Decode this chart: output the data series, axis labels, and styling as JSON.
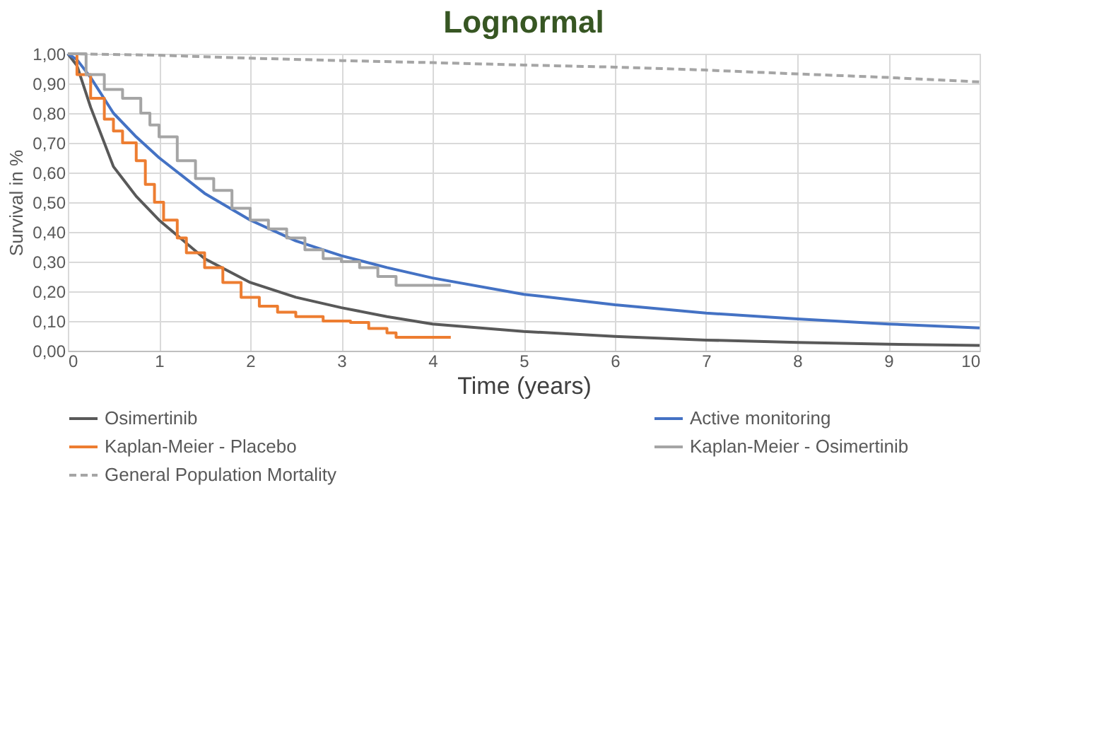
{
  "chart_data": {
    "type": "line",
    "title": "Lognormal",
    "xlabel": "Time (years)",
    "ylabel": "Survival in %",
    "xlim": [
      0,
      10
    ],
    "xticks": [
      0,
      1,
      2,
      3,
      4,
      5,
      6,
      7,
      8,
      9,
      10
    ],
    "ylim": [
      0,
      1
    ],
    "yticks": [
      {
        "value": 0,
        "label": "0,00"
      },
      {
        "value": 0.1,
        "label": "0,10"
      },
      {
        "value": 0.2,
        "label": "0,20"
      },
      {
        "value": 0.3,
        "label": "0,30"
      },
      {
        "value": 0.4,
        "label": "0,40"
      },
      {
        "value": 0.5,
        "label": "0,50"
      },
      {
        "value": 0.6,
        "label": "0,60"
      },
      {
        "value": 0.7,
        "label": "0,70"
      },
      {
        "value": 0.8,
        "label": "0,80"
      },
      {
        "value": 0.9,
        "label": "0,90"
      },
      {
        "value": 1,
        "label": "1,00"
      }
    ],
    "grid": true,
    "legend": "bottom",
    "marker": "none",
    "series": [
      {
        "name": "Osimertinib",
        "color": "#595959",
        "line_style": "solid",
        "x": [
          0,
          0.1,
          0.25,
          0.5,
          0.75,
          1,
          1.5,
          2,
          2.5,
          3,
          3.5,
          4,
          5,
          6,
          7,
          8,
          9,
          10
        ],
        "values": [
          1,
          0.96,
          0.82,
          0.62,
          0.52,
          0.44,
          0.31,
          0.23,
          0.18,
          0.145,
          0.115,
          0.09,
          0.065,
          0.048,
          0.036,
          0.028,
          0.022,
          0.018
        ]
      },
      {
        "name": "Active monitoring",
        "color": "#4472c4",
        "line_style": "solid",
        "x": [
          0,
          0.1,
          0.25,
          0.5,
          0.75,
          1,
          1.5,
          2,
          2.5,
          3,
          3.5,
          4,
          5,
          6,
          7,
          8,
          9,
          10
        ],
        "values": [
          1,
          0.98,
          0.92,
          0.8,
          0.72,
          0.65,
          0.53,
          0.44,
          0.37,
          0.32,
          0.28,
          0.245,
          0.19,
          0.155,
          0.127,
          0.107,
          0.09,
          0.077
        ]
      },
      {
        "name": "Kaplan-Meier - Placebo",
        "type": "step",
        "color": "#ed7d31",
        "line_style": "solid",
        "x": [
          0,
          0.1,
          0.25,
          0.4,
          0.5,
          0.6,
          0.75,
          0.85,
          0.95,
          1.05,
          1.2,
          1.3,
          1.5,
          1.7,
          1.9,
          2.1,
          2.3,
          2.5,
          2.8,
          3.1,
          3.3,
          3.5,
          3.6,
          4.2
        ],
        "values": [
          1,
          0.93,
          0.85,
          0.78,
          0.74,
          0.7,
          0.64,
          0.56,
          0.5,
          0.44,
          0.38,
          0.33,
          0.28,
          0.23,
          0.18,
          0.15,
          0.13,
          0.115,
          0.1,
          0.095,
          0.075,
          0.06,
          0.045,
          0.045
        ]
      },
      {
        "name": "Kaplan-Meier - Osimertinib",
        "type": "step",
        "color": "#a5a5a5",
        "line_style": "solid",
        "x": [
          0,
          0.2,
          0.4,
          0.6,
          0.8,
          0.9,
          1.0,
          1.2,
          1.4,
          1.6,
          1.8,
          2.0,
          2.2,
          2.4,
          2.6,
          2.8,
          3.0,
          3.2,
          3.4,
          3.6,
          4.2
        ],
        "values": [
          1,
          0.93,
          0.88,
          0.85,
          0.8,
          0.76,
          0.72,
          0.64,
          0.58,
          0.54,
          0.48,
          0.44,
          0.41,
          0.38,
          0.34,
          0.31,
          0.3,
          0.28,
          0.25,
          0.22,
          0.22
        ]
      },
      {
        "name": "General Population Mortality",
        "color": "#a5a5a5",
        "line_style": "dashed",
        "x": [
          0,
          1,
          2,
          3,
          4,
          5,
          6,
          7,
          8,
          9,
          10
        ],
        "values": [
          1,
          0.995,
          0.985,
          0.977,
          0.97,
          0.962,
          0.955,
          0.945,
          0.932,
          0.92,
          0.905
        ]
      }
    ]
  }
}
